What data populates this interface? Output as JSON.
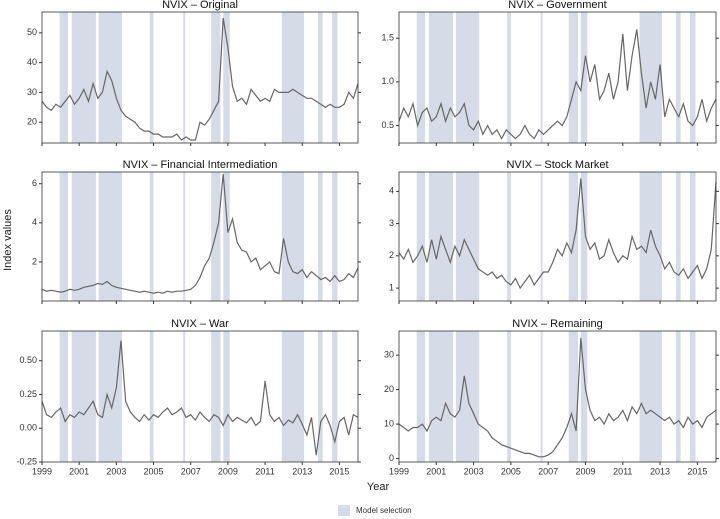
{
  "y_label": "Index values",
  "x_label": "Year",
  "model_selection": {
    "label": "Model selection",
    "color": "#d6dbe8",
    "periods": [
      [
        1999.95,
        2000.4
      ],
      [
        2000.6,
        2001.9
      ],
      [
        2002.05,
        2003.3
      ],
      [
        2004.8,
        2005.0
      ],
      [
        2006.6,
        2006.7
      ],
      [
        2008.1,
        2008.6
      ],
      [
        2008.75,
        2009.1
      ],
      [
        2011.9,
        2013.1
      ],
      [
        2013.85,
        2014.1
      ],
      [
        2014.6,
        2014.9
      ]
    ]
  },
  "chart_data": [
    {
      "type": "line",
      "title": "NVIX – Original",
      "color": "#666666",
      "xlim": [
        1999,
        2016
      ],
      "xticks": [
        1999,
        2001,
        2003,
        2005,
        2007,
        2009,
        2011,
        2013,
        2015
      ],
      "ylim": [
        13,
        57
      ],
      "yticks": [
        20,
        30,
        40,
        50
      ],
      "x": [
        1999,
        1999.25,
        1999.5,
        1999.75,
        2000,
        2000.25,
        2000.5,
        2000.75,
        2001,
        2001.25,
        2001.5,
        2001.75,
        2002,
        2002.25,
        2002.5,
        2002.75,
        2003,
        2003.25,
        2003.5,
        2003.75,
        2004,
        2004.25,
        2004.5,
        2004.75,
        2005,
        2005.25,
        2005.5,
        2005.75,
        2006,
        2006.25,
        2006.5,
        2006.75,
        2007,
        2007.25,
        2007.5,
        2007.75,
        2008,
        2008.25,
        2008.5,
        2008.75,
        2009,
        2009.25,
        2009.5,
        2009.75,
        2010,
        2010.25,
        2010.5,
        2010.75,
        2011,
        2011.25,
        2011.5,
        2011.75,
        2012,
        2012.25,
        2012.5,
        2012.75,
        2013,
        2013.25,
        2013.5,
        2013.75,
        2014,
        2014.25,
        2014.5,
        2014.75,
        2015,
        2015.25,
        2015.5,
        2015.75,
        2016
      ],
      "values": [
        27,
        25,
        24,
        26,
        25,
        27,
        29,
        26,
        28,
        31,
        27,
        33,
        28,
        30,
        37,
        34,
        28,
        24,
        22,
        21,
        20,
        18,
        17,
        17,
        16,
        16,
        15,
        15,
        15,
        16,
        14,
        15,
        14,
        14,
        20,
        19,
        21,
        24,
        27,
        55,
        45,
        32,
        27,
        28,
        26,
        31,
        29,
        27,
        28,
        27,
        31,
        30,
        30,
        30,
        31,
        30,
        29,
        28,
        28,
        27,
        26,
        25,
        26,
        25,
        25,
        26,
        30,
        28,
        33
      ]
    },
    {
      "type": "line",
      "title": "NVIX – Government",
      "color": "#666666",
      "xlim": [
        1999,
        2016
      ],
      "xticks": [
        1999,
        2001,
        2003,
        2005,
        2007,
        2009,
        2011,
        2013,
        2015
      ],
      "ylim": [
        0.3,
        1.8
      ],
      "yticks": [
        0.5,
        {
          "value": 1,
          "label": "1.0"
        },
        1.5
      ],
      "x": [
        1999,
        1999.25,
        1999.5,
        1999.75,
        2000,
        2000.25,
        2000.5,
        2000.75,
        2001,
        2001.25,
        2001.5,
        2001.75,
        2002,
        2002.25,
        2002.5,
        2002.75,
        2003,
        2003.25,
        2003.5,
        2003.75,
        2004,
        2004.25,
        2004.5,
        2004.75,
        2005,
        2005.25,
        2005.5,
        2005.75,
        2006,
        2006.25,
        2006.5,
        2006.75,
        2007,
        2007.25,
        2007.5,
        2007.75,
        2008,
        2008.25,
        2008.5,
        2008.75,
        2009,
        2009.25,
        2009.5,
        2009.75,
        2010,
        2010.25,
        2010.5,
        2010.75,
        2011,
        2011.25,
        2011.5,
        2011.75,
        2012,
        2012.25,
        2012.5,
        2012.75,
        2013,
        2013.25,
        2013.5,
        2013.75,
        2014,
        2014.25,
        2014.5,
        2014.75,
        2015,
        2015.25,
        2015.5,
        2015.75,
        2016
      ],
      "values": [
        0.55,
        0.7,
        0.6,
        0.75,
        0.5,
        0.65,
        0.7,
        0.55,
        0.6,
        0.75,
        0.55,
        0.7,
        0.6,
        0.65,
        0.75,
        0.5,
        0.45,
        0.55,
        0.4,
        0.5,
        0.4,
        0.45,
        0.35,
        0.45,
        0.4,
        0.35,
        0.4,
        0.5,
        0.4,
        0.35,
        0.45,
        0.4,
        0.45,
        0.5,
        0.55,
        0.5,
        0.6,
        0.8,
        1.0,
        0.9,
        1.3,
        1.0,
        1.2,
        0.8,
        0.9,
        1.1,
        0.8,
        1.0,
        1.55,
        0.9,
        1.3,
        1.6,
        1.1,
        0.7,
        1.0,
        0.8,
        1.2,
        0.6,
        0.8,
        0.7,
        0.6,
        0.75,
        0.55,
        0.5,
        0.6,
        0.8,
        0.55,
        0.7,
        0.8
      ]
    },
    {
      "type": "line",
      "title": "NVIX – Financial Intermediation",
      "color": "#666666",
      "xlim": [
        1999,
        2016
      ],
      "xticks": [
        1999,
        2001,
        2003,
        2005,
        2007,
        2009,
        2011,
        2013,
        2015
      ],
      "ylim": [
        0,
        6.6
      ],
      "yticks": [
        2,
        4,
        6
      ],
      "x": [
        1999,
        1999.25,
        1999.5,
        1999.75,
        2000,
        2000.25,
        2000.5,
        2000.75,
        2001,
        2001.25,
        2001.5,
        2001.75,
        2002,
        2002.25,
        2002.5,
        2002.75,
        2003,
        2003.25,
        2003.5,
        2003.75,
        2004,
        2004.25,
        2004.5,
        2004.75,
        2005,
        2005.25,
        2005.5,
        2005.75,
        2006,
        2006.25,
        2006.5,
        2006.75,
        2007,
        2007.25,
        2007.5,
        2007.75,
        2008,
        2008.25,
        2008.5,
        2008.75,
        2009,
        2009.25,
        2009.5,
        2009.75,
        2010,
        2010.25,
        2010.5,
        2010.75,
        2011,
        2011.25,
        2011.5,
        2011.75,
        2012,
        2012.25,
        2012.5,
        2012.75,
        2013,
        2013.25,
        2013.5,
        2013.75,
        2014,
        2014.25,
        2014.5,
        2014.75,
        2015,
        2015.25,
        2015.5,
        2015.75,
        2016
      ],
      "values": [
        0.6,
        0.5,
        0.55,
        0.5,
        0.45,
        0.5,
        0.6,
        0.55,
        0.6,
        0.7,
        0.75,
        0.8,
        0.9,
        0.85,
        1.0,
        0.8,
        0.7,
        0.65,
        0.6,
        0.55,
        0.5,
        0.45,
        0.5,
        0.45,
        0.4,
        0.45,
        0.4,
        0.5,
        0.45,
        0.5,
        0.5,
        0.55,
        0.6,
        0.8,
        1.2,
        1.8,
        2.2,
        3.0,
        4.0,
        6.5,
        3.5,
        4.2,
        3.0,
        2.6,
        2.5,
        2.0,
        2.2,
        1.6,
        1.8,
        2.0,
        1.5,
        1.4,
        3.2,
        2.0,
        1.5,
        1.4,
        1.6,
        1.2,
        1.5,
        1.3,
        1.1,
        1.2,
        1.0,
        1.3,
        1.0,
        1.1,
        1.4,
        1.2,
        1.7
      ]
    },
    {
      "type": "line",
      "title": "NVIX – Stock Market",
      "color": "#666666",
      "xlim": [
        1999,
        2016
      ],
      "xticks": [
        1999,
        2001,
        2003,
        2005,
        2007,
        2009,
        2011,
        2013,
        2015
      ],
      "ylim": [
        0.6,
        4.6
      ],
      "yticks": [
        1,
        2,
        3,
        4
      ],
      "x": [
        1999,
        1999.25,
        1999.5,
        1999.75,
        2000,
        2000.25,
        2000.5,
        2000.75,
        2001,
        2001.25,
        2001.5,
        2001.75,
        2002,
        2002.25,
        2002.5,
        2002.75,
        2003,
        2003.25,
        2003.5,
        2003.75,
        2004,
        2004.25,
        2004.5,
        2004.75,
        2005,
        2005.25,
        2005.5,
        2005.75,
        2006,
        2006.25,
        2006.5,
        2006.75,
        2007,
        2007.25,
        2007.5,
        2007.75,
        2008,
        2008.25,
        2008.5,
        2008.75,
        2009,
        2009.25,
        2009.5,
        2009.75,
        2010,
        2010.25,
        2010.5,
        2010.75,
        2011,
        2011.25,
        2011.5,
        2011.75,
        2012,
        2012.25,
        2012.5,
        2012.75,
        2013,
        2013.25,
        2013.5,
        2013.75,
        2014,
        2014.25,
        2014.5,
        2014.75,
        2015,
        2015.25,
        2015.5,
        2015.75,
        2016
      ],
      "values": [
        2.1,
        1.9,
        2.2,
        1.8,
        2.0,
        2.3,
        1.8,
        2.5,
        1.9,
        2.6,
        2.2,
        1.8,
        2.3,
        2.0,
        2.5,
        2.2,
        1.9,
        1.6,
        1.5,
        1.4,
        1.5,
        1.3,
        1.4,
        1.2,
        1.1,
        1.3,
        1.0,
        1.2,
        1.4,
        1.1,
        1.3,
        1.5,
        1.5,
        1.8,
        2.2,
        2.0,
        2.4,
        2.1,
        2.8,
        4.4,
        2.6,
        2.2,
        2.4,
        1.9,
        2.0,
        2.5,
        2.1,
        1.8,
        2.0,
        1.9,
        2.6,
        2.2,
        2.3,
        2.1,
        2.8,
        2.3,
        2.0,
        1.6,
        1.8,
        1.5,
        1.4,
        1.6,
        1.3,
        1.5,
        1.7,
        1.3,
        1.6,
        2.2,
        4.3
      ]
    },
    {
      "type": "line",
      "title": "NVIX – War",
      "color": "#666666",
      "xlim": [
        1999,
        2016
      ],
      "xticks": [
        1999,
        2001,
        2003,
        2005,
        2007,
        2009,
        2011,
        2013,
        2015
      ],
      "ylim": [
        -0.25,
        0.72
      ],
      "yticks": [
        {
          "value": -0.25,
          "label": "-0.25"
        },
        {
          "value": 0,
          "label": "0.00"
        },
        0.25,
        {
          "value": 0.5,
          "label": "0.50"
        }
      ],
      "x": [
        1999,
        1999.25,
        1999.5,
        1999.75,
        2000,
        2000.25,
        2000.5,
        2000.75,
        2001,
        2001.25,
        2001.5,
        2001.75,
        2002,
        2002.25,
        2002.5,
        2002.75,
        2003,
        2003.25,
        2003.5,
        2003.75,
        2004,
        2004.25,
        2004.5,
        2004.75,
        2005,
        2005.25,
        2005.5,
        2005.75,
        2006,
        2006.25,
        2006.5,
        2006.75,
        2007,
        2007.25,
        2007.5,
        2007.75,
        2008,
        2008.25,
        2008.5,
        2008.75,
        2009,
        2009.25,
        2009.5,
        2009.75,
        2010,
        2010.25,
        2010.5,
        2010.75,
        2011,
        2011.25,
        2011.5,
        2011.75,
        2012,
        2012.25,
        2012.5,
        2012.75,
        2013,
        2013.25,
        2013.5,
        2013.75,
        2014,
        2014.25,
        2014.5,
        2014.75,
        2015,
        2015.25,
        2015.5,
        2015.75,
        2016
      ],
      "values": [
        0.2,
        0.1,
        0.08,
        0.12,
        0.15,
        0.05,
        0.1,
        0.08,
        0.12,
        0.1,
        0.15,
        0.2,
        0.1,
        0.08,
        0.25,
        0.15,
        0.3,
        0.65,
        0.2,
        0.12,
        0.08,
        0.05,
        0.1,
        0.06,
        0.1,
        0.08,
        0.12,
        0.15,
        0.1,
        0.12,
        0.15,
        0.08,
        0.1,
        0.06,
        0.12,
        0.08,
        0.05,
        0.1,
        0.08,
        0.02,
        0.1,
        0.05,
        0.08,
        0.06,
        0.04,
        0.08,
        0.02,
        0.05,
        0.35,
        0.1,
        0.05,
        0.08,
        0.02,
        0.06,
        0.04,
        0.1,
        0.03,
        -0.05,
        0.08,
        -0.2,
        0.05,
        0.1,
        0.02,
        -0.1,
        0.05,
        0.08,
        -0.05,
        0.1,
        0.08
      ]
    },
    {
      "type": "line",
      "title": "NVIX – Remaining",
      "color": "#666666",
      "xlim": [
        1999,
        2016
      ],
      "xticks": [
        1999,
        2001,
        2003,
        2005,
        2007,
        2009,
        2011,
        2013,
        2015
      ],
      "ylim": [
        -1,
        37
      ],
      "yticks": [
        0,
        10,
        20,
        30
      ],
      "x": [
        1999,
        1999.25,
        1999.5,
        1999.75,
        2000,
        2000.25,
        2000.5,
        2000.75,
        2001,
        2001.25,
        2001.5,
        2001.75,
        2002,
        2002.25,
        2002.5,
        2002.75,
        2003,
        2003.25,
        2003.5,
        2003.75,
        2004,
        2004.25,
        2004.5,
        2004.75,
        2005,
        2005.25,
        2005.5,
        2005.75,
        2006,
        2006.25,
        2006.5,
        2006.75,
        2007,
        2007.25,
        2007.5,
        2007.75,
        2008,
        2008.25,
        2008.5,
        2008.75,
        2009,
        2009.25,
        2009.5,
        2009.75,
        2010,
        2010.25,
        2010.5,
        2010.75,
        2011,
        2011.25,
        2011.5,
        2011.75,
        2012,
        2012.25,
        2012.5,
        2012.75,
        2013,
        2013.25,
        2013.5,
        2013.75,
        2014,
        2014.25,
        2014.5,
        2014.75,
        2015,
        2015.25,
        2015.5,
        2015.75,
        2016
      ],
      "values": [
        10,
        9,
        8,
        9,
        9,
        10,
        8,
        11,
        12,
        11,
        16,
        13,
        12,
        14,
        24,
        16,
        13,
        10,
        9,
        8,
        6,
        5,
        4,
        3.5,
        3,
        2.5,
        2,
        1.5,
        1.5,
        1,
        0.5,
        0.5,
        1,
        2,
        4,
        6,
        9,
        13,
        8,
        35,
        20,
        14,
        11,
        12,
        10,
        13,
        11,
        12,
        14,
        11,
        15,
        13,
        16,
        13,
        14,
        13,
        12,
        11,
        12,
        10,
        11,
        9,
        12,
        10,
        11,
        9,
        12,
        13,
        14
      ]
    }
  ]
}
